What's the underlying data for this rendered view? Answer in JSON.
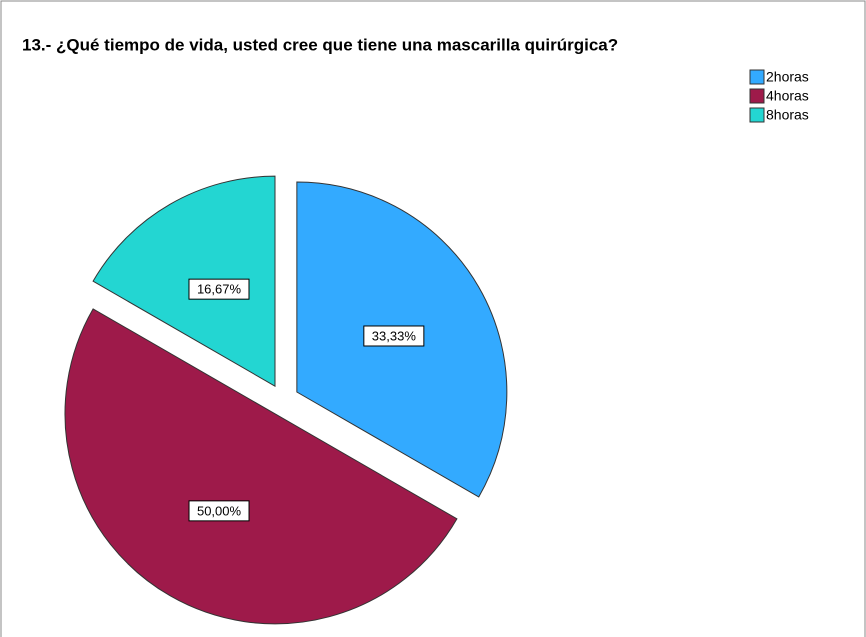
{
  "chart_data": {
    "type": "pie",
    "title": "13.- ¿Qué tiempo de vida, usted cree que tiene una mascarilla quirúrgica?",
    "categories": [
      "2horas",
      "4horas",
      "8horas"
    ],
    "values": [
      33.33,
      50,
      16.67
    ],
    "value_labels": [
      "33,33%",
      "50,00%",
      "16,67%"
    ],
    "colors": [
      "#33aaff",
      "#9e1a4a",
      "#23d6d2"
    ],
    "legend": "top-right"
  }
}
